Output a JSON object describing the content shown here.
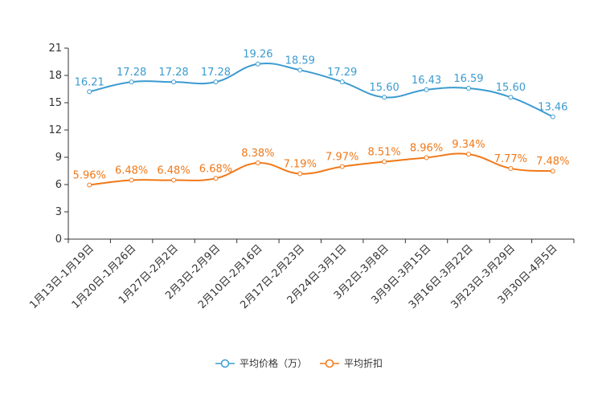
{
  "chart_data": {
    "type": "line",
    "categories": [
      "1月13日-1月19日",
      "1月20日-1月26日",
      "1月27日-2月2日",
      "2月3日-2月9日",
      "2月10日-2月16日",
      "2月17日-2月23日",
      "2月24日-3月1日",
      "3月2日-3月8日",
      "3月9日-3月15日",
      "3月16日-3月22日",
      "3月23日-3月29日",
      "3月30日-4月5日"
    ],
    "ylim": [
      0,
      21
    ],
    "yticks": [
      0,
      3,
      6,
      9,
      12,
      15,
      18,
      21
    ],
    "series": [
      {
        "name": "平均价格（万）",
        "color": "#3b9bd0",
        "values": [
          16.21,
          17.28,
          17.28,
          17.28,
          19.26,
          18.59,
          17.29,
          15.6,
          16.43,
          16.59,
          15.6,
          13.46
        ],
        "labels": [
          "16.21",
          "17.28",
          "17.28",
          "17.28",
          "19.26",
          "18.59",
          "17.29",
          "15.60",
          "16.43",
          "16.59",
          "15.60",
          "13.46"
        ]
      },
      {
        "name": "平均折扣",
        "color": "#f07818",
        "values": [
          5.96,
          6.48,
          6.48,
          6.68,
          8.38,
          7.19,
          7.97,
          8.51,
          8.96,
          9.34,
          7.77,
          7.48
        ],
        "labels": [
          "5.96%",
          "6.48%",
          "6.48%",
          "6.68%",
          "8.38%",
          "7.19%",
          "7.97%",
          "8.51%",
          "8.96%",
          "9.34%",
          "7.77%",
          "7.48%"
        ]
      }
    ]
  }
}
